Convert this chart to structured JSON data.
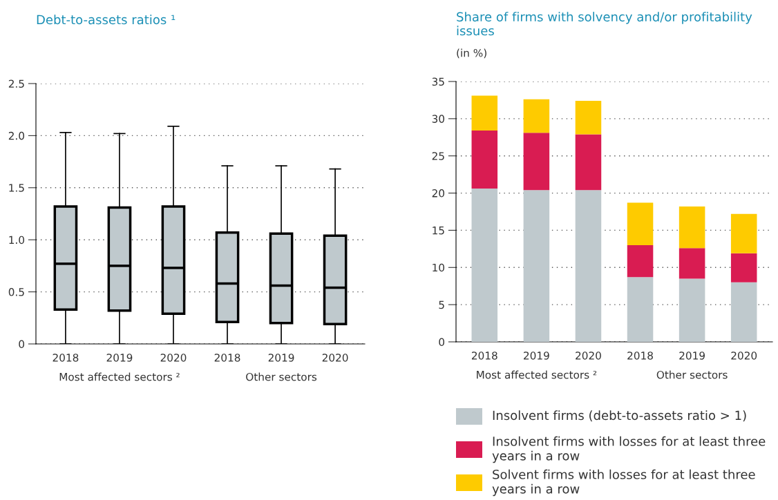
{
  "chart_data": [
    {
      "type": "box",
      "title": "Debt-to-assets ratios ¹",
      "categories": [
        "2018",
        "2019",
        "2020",
        "2018",
        "2019",
        "2020"
      ],
      "color": "#bfc9cd",
      "boxes": [
        {
          "low": 0,
          "q1": 0.33,
          "median": 0.77,
          "q3": 1.32,
          "high": 2.03
        },
        {
          "low": 0,
          "q1": 0.32,
          "median": 0.75,
          "q3": 1.31,
          "high": 2.02
        },
        {
          "low": 0,
          "q1": 0.29,
          "median": 0.73,
          "q3": 1.32,
          "high": 2.09
        },
        {
          "low": 0,
          "q1": 0.21,
          "median": 0.58,
          "q3": 1.07,
          "high": 1.71
        },
        {
          "low": 0,
          "q1": 0.2,
          "median": 0.56,
          "q3": 1.06,
          "high": 1.71
        },
        {
          "low": 0,
          "q1": 0.19,
          "median": 0.54,
          "q3": 1.04,
          "high": 1.68
        }
      ],
      "ylim": [
        0,
        2.5
      ],
      "yticks": [
        0,
        0.5,
        {
          "value": 1,
          "label": "1.0"
        },
        1.5,
        {
          "value": 2,
          "label": "2.0"
        },
        2.5
      ],
      "grid": "y",
      "annotations": [
        "Most affected sectors ²",
        "Other sectors"
      ]
    },
    {
      "type": "bar",
      "title": "Share of firms with solvency and/or profitability issues",
      "subtitle": "(in %)",
      "categories": [
        "2018",
        "2019",
        "2020",
        "2018",
        "2019",
        "2020"
      ],
      "stacked": true,
      "series": [
        {
          "name": "Insolvent firms (debt-to-assets ratio > 1)",
          "color": "#bfc9cd",
          "values": [
            20.6,
            20.4,
            20.4,
            8.7,
            8.5,
            8.0
          ]
        },
        {
          "name": "Insolvent firms with losses for at least three years in a row",
          "color": "#d91c52",
          "values": [
            7.8,
            7.7,
            7.5,
            4.3,
            4.1,
            3.9
          ]
        },
        {
          "name": "Solvent firms with losses for at least three years in a row",
          "color": "#fecb00",
          "values": [
            4.7,
            4.5,
            4.5,
            5.7,
            5.6,
            5.3
          ]
        }
      ],
      "ylim": [
        0,
        35
      ],
      "yticks": [
        0,
        5,
        10,
        15,
        20,
        25,
        30,
        35
      ],
      "grid": "y",
      "legend": "bottom",
      "annotations": [
        "Most affected sectors ²",
        "Other sectors"
      ]
    }
  ]
}
